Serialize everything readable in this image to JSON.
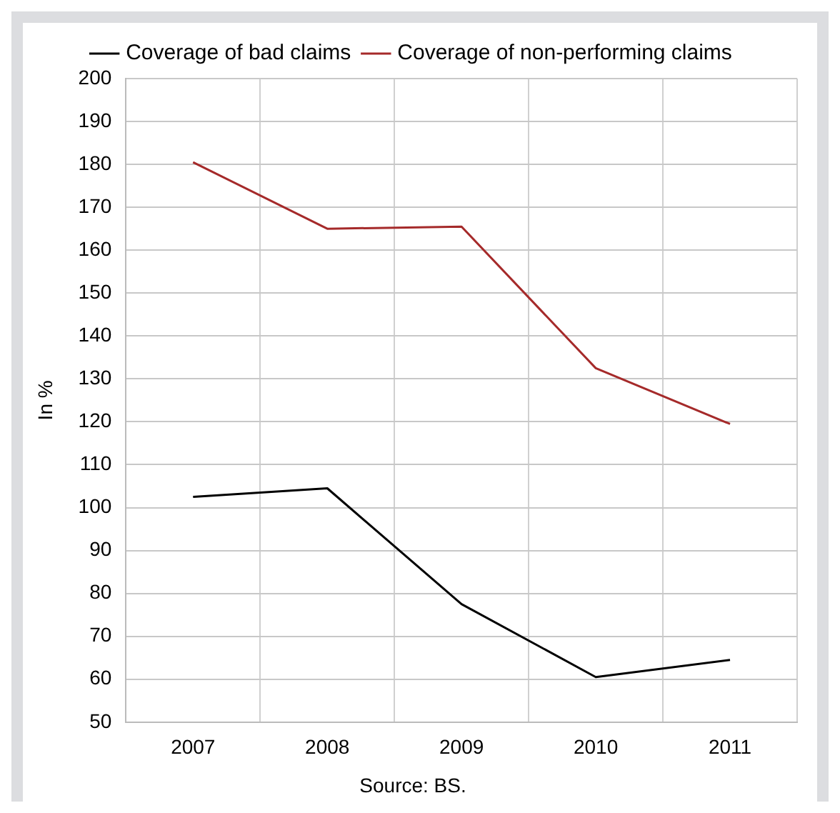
{
  "chart_data": {
    "type": "line",
    "categories": [
      "2007",
      "2008",
      "2009",
      "2010",
      "2011"
    ],
    "ylabel": "In %",
    "ylim": [
      50,
      200
    ],
    "yticks": [
      50,
      60,
      70,
      80,
      90,
      100,
      110,
      120,
      130,
      140,
      150,
      160,
      170,
      180,
      190,
      200
    ],
    "grid": true,
    "legend": "top",
    "marker": "none",
    "line_style": "solid",
    "annotations": [
      "Source: BS."
    ],
    "series": [
      {
        "name": "Coverage of bad claims",
        "color": "#000000",
        "values": [
          102.5,
          104.5,
          77.5,
          60.5,
          64.5
        ]
      },
      {
        "name": "Coverage of non-performing claims",
        "color": "#a52a2a",
        "values": [
          180.5,
          165,
          165.5,
          132.5,
          119.5
        ]
      }
    ]
  }
}
